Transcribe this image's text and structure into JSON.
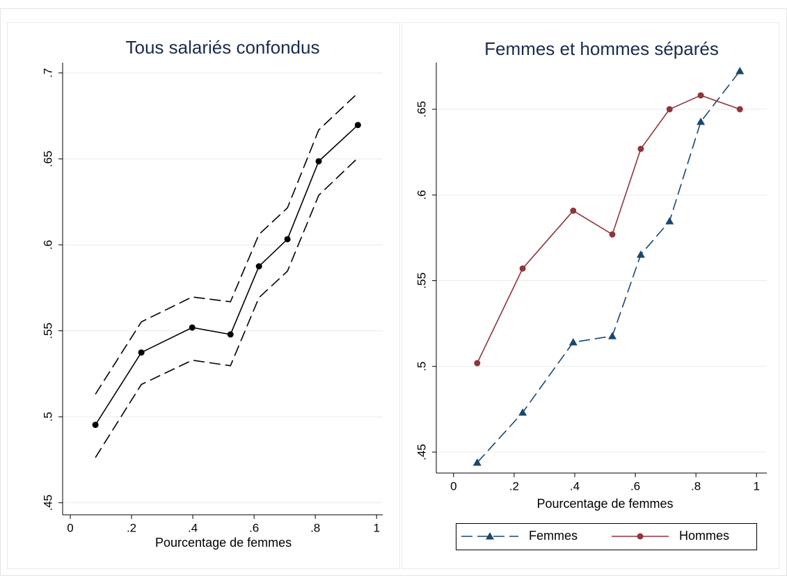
{
  "chart_data": [
    {
      "type": "line",
      "title": "Tous salariés confondus",
      "x_label": "Pourcentage de femmes",
      "x": [
        0.082,
        0.232,
        0.398,
        0.523,
        0.616,
        0.709,
        0.811,
        0.939
      ],
      "series": [
        {
          "color": "#000000",
          "style": "dashed",
          "values": [
            0.5131,
            0.5552,
            0.5697,
            0.5669,
            0.6061,
            0.6215,
            0.6668,
            0.6883
          ]
        },
        {
          "color": "#000000",
          "style": "solid",
          "marker": "circle",
          "values": [
            0.4953,
            0.5374,
            0.5519,
            0.5479,
            0.5875,
            0.6033,
            0.6486,
            0.6697
          ]
        },
        {
          "color": "#000000",
          "style": "dashed",
          "values": [
            0.4763,
            0.5188,
            0.5329,
            0.5297,
            0.5693,
            0.5847,
            0.6288,
            0.6506
          ]
        }
      ],
      "xlim": [
        -0.025,
        1.02
      ],
      "xticks": [
        0,
        {
          "value": 0.2,
          "label": ".2"
        },
        {
          "value": 0.4,
          "label": ".4"
        },
        {
          "value": 0.6,
          "label": ".6"
        },
        {
          "value": 0.8,
          "label": ".8"
        },
        1
      ],
      "ylim": [
        0.443,
        0.706
      ],
      "yticks": [
        {
          "value": 0.45,
          "label": ".45"
        },
        {
          "value": 0.5,
          "label": ".5"
        },
        {
          "value": 0.55,
          "label": ".55"
        },
        {
          "value": 0.6,
          "label": ".6"
        },
        {
          "value": 0.65,
          "label": ".65"
        },
        {
          "value": 0.7,
          "label": ".7"
        }
      ],
      "grid": true
    },
    {
      "type": "line",
      "title": "Femmes et hommes séparés",
      "x_label": "Pourcentage de femmes",
      "x": [
        0.078,
        0.228,
        0.395,
        0.524,
        0.618,
        0.713,
        0.816,
        0.945
      ],
      "series": [
        {
          "name": "Femmes",
          "color": "#1a476f",
          "style": "dashed",
          "marker": "triangle",
          "values": [
            0.4439,
            0.4731,
            0.5141,
            0.5177,
            0.5652,
            0.5847,
            0.6427,
            0.6723
          ]
        },
        {
          "name": "Hommes",
          "color": "#90353b",
          "style": "solid",
          "marker": "circle",
          "values": [
            0.5019,
            0.5571,
            0.5908,
            0.577,
            0.6269,
            0.65,
            0.6581,
            0.65
          ]
        }
      ],
      "xlim": [
        -0.057,
        1.034
      ],
      "xticks": [
        0,
        {
          "value": 0.2,
          "label": ".2"
        },
        {
          "value": 0.4,
          "label": ".4"
        },
        {
          "value": 0.6,
          "label": ".6"
        },
        {
          "value": 0.8,
          "label": ".8"
        },
        1
      ],
      "ylim": [
        0.4378,
        0.6772
      ],
      "yticks": [
        {
          "value": 0.45,
          "label": ".45"
        },
        {
          "value": 0.5,
          "label": ".5"
        },
        {
          "value": 0.55,
          "label": ".55"
        },
        {
          "value": 0.6,
          "label": ".6"
        },
        {
          "value": 0.65,
          "label": ".65"
        }
      ],
      "grid": true,
      "legend": "bottom"
    }
  ]
}
